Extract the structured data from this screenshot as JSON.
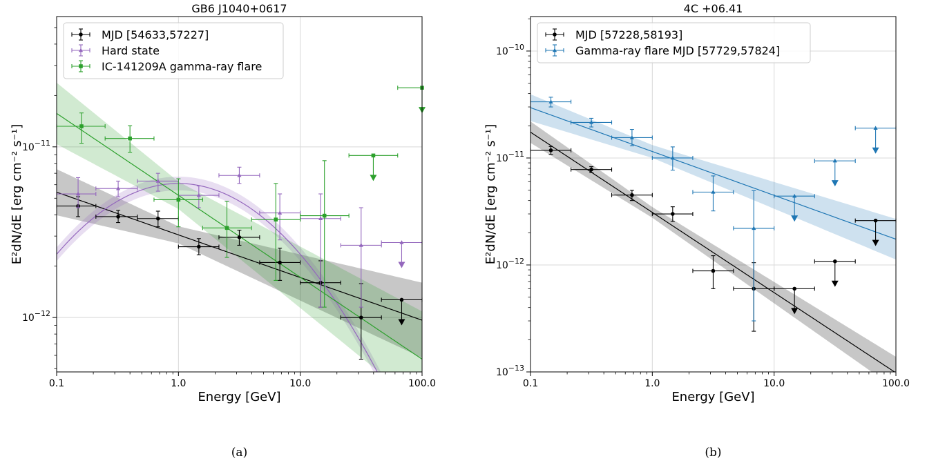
{
  "chart_data": [
    {
      "type": "scatter",
      "title": "GB6 J1040+0617",
      "xlabel": "Energy [GeV]",
      "ylabel": "E²dN/dE [erg cm⁻² s⁻¹]",
      "xscale": "log",
      "yscale": "log",
      "xlim": [
        0.1,
        100
      ],
      "ylim": [
        4.8e-13,
        5.8e-11
      ],
      "xticks": [
        0.1,
        1,
        10,
        100
      ],
      "xtick_labels": [
        "0.1",
        "1.0",
        "10.0",
        "100.0"
      ],
      "yticks": [
        1e-12,
        1e-11
      ],
      "ytick_labels": [
        {
          "base": "10",
          "exp": "−12"
        },
        {
          "base": "10",
          "exp": "−11"
        }
      ],
      "grid": true,
      "legend_position": "top-left",
      "caption": "(a)",
      "series": [
        {
          "name": "MJD [54633,57227]",
          "color": "#000000",
          "marker": "circle",
          "points": [
            {
              "x": 0.15,
              "xlo": 0.1,
              "xhi": 0.21,
              "y": 4.5e-12,
              "ylo": 3.9e-12,
              "yhi": 5.1e-12
            },
            {
              "x": 0.32,
              "xlo": 0.21,
              "xhi": 0.46,
              "y": 3.9e-12,
              "ylo": 3.6e-12,
              "yhi": 4.25e-12
            },
            {
              "x": 0.68,
              "xlo": 0.46,
              "xhi": 1.0,
              "y": 3.8e-12,
              "ylo": 3.4e-12,
              "yhi": 4.2e-12
            },
            {
              "x": 1.47,
              "xlo": 1.0,
              "xhi": 2.15,
              "y": 2.6e-12,
              "ylo": 2.33e-12,
              "yhi": 2.9e-12
            },
            {
              "x": 3.16,
              "xlo": 2.15,
              "xhi": 4.64,
              "y": 2.95e-12,
              "ylo": 2.65e-12,
              "yhi": 3.25e-12
            },
            {
              "x": 6.8,
              "xlo": 4.64,
              "xhi": 10.0,
              "y": 2.1e-12,
              "ylo": 1.65e-12,
              "yhi": 2.55e-12
            },
            {
              "x": 14.7,
              "xlo": 10.0,
              "xhi": 21.5,
              "y": 1.6e-12,
              "ylo": 1.15e-12,
              "yhi": 2.15e-12
            },
            {
              "x": 31.6,
              "xlo": 21.5,
              "xhi": 46.4,
              "y": 1e-12,
              "ylo": 5.7e-13,
              "yhi": 1.58e-12
            },
            {
              "x": 68.0,
              "xlo": 46.4,
              "xhi": 100,
              "y": 1.27e-12,
              "upper_limit": true
            }
          ],
          "model": {
            "kind": "powerlaw",
            "E0": 1,
            "norm": 3.05e-12,
            "index": 2.25,
            "band_width": [
              0.05,
              0.22
            ]
          }
        },
        {
          "name": "Hard state",
          "color": "#9467bd",
          "marker": "triangle",
          "points": [
            {
              "x": 0.15,
              "xlo": 0.1,
              "xhi": 0.21,
              "y": 5.3e-12,
              "ylo": 4.4e-12,
              "yhi": 6.6e-12
            },
            {
              "x": 0.32,
              "xlo": 0.21,
              "xhi": 0.46,
              "y": 5.7e-12,
              "ylo": 5.1e-12,
              "yhi": 6.3e-12
            },
            {
              "x": 0.68,
              "xlo": 0.46,
              "xhi": 1.0,
              "y": 6.3e-12,
              "ylo": 5.5e-12,
              "yhi": 7e-12
            },
            {
              "x": 1.47,
              "xlo": 1.0,
              "xhi": 2.15,
              "y": 5.2e-12,
              "ylo": 4.4e-12,
              "yhi": 5.9e-12
            },
            {
              "x": 3.16,
              "xlo": 2.15,
              "xhi": 4.64,
              "y": 6.8e-12,
              "ylo": 6.1e-12,
              "yhi": 7.6e-12
            },
            {
              "x": 6.8,
              "xlo": 4.64,
              "xhi": 10.0,
              "y": 4.1e-12,
              "ylo": 2.85e-12,
              "yhi": 5.3e-12
            },
            {
              "x": 14.7,
              "xlo": 10.0,
              "xhi": 21.5,
              "y": 3.8e-12,
              "ylo": 1.15e-12,
              "yhi": 5.3e-12
            },
            {
              "x": 31.6,
              "xlo": 21.5,
              "xhi": 46.4,
              "y": 2.65e-12,
              "ylo": 1.15e-12,
              "yhi": 4.4e-12
            },
            {
              "x": 68.0,
              "xlo": 46.4,
              "xhi": 100,
              "y": 2.75e-12,
              "upper_limit": true
            }
          ],
          "model": {
            "kind": "logparabola",
            "E0": 1,
            "norm": 6.1e-12,
            "alpha": 2.0,
            "beta": 0.18,
            "band_width": 0.04
          }
        },
        {
          "name": "IC-141209A gamma-ray flare",
          "color": "#2ca02c",
          "marker": "square",
          "points": [
            {
              "x": 0.16,
              "xlo": 0.1,
              "xhi": 0.25,
              "y": 1.32e-11,
              "ylo": 1.05e-11,
              "yhi": 1.58e-11
            },
            {
              "x": 0.4,
              "xlo": 0.25,
              "xhi": 0.63,
              "y": 1.12e-11,
              "ylo": 9.3e-12,
              "yhi": 1.33e-11
            },
            {
              "x": 1.0,
              "xlo": 0.63,
              "xhi": 1.58,
              "y": 4.9e-12,
              "ylo": 3.4e-12,
              "yhi": 6.5e-12
            },
            {
              "x": 2.5,
              "xlo": 1.58,
              "xhi": 3.98,
              "y": 3.35e-12,
              "ylo": 2.25e-12,
              "yhi": 4.8e-12
            },
            {
              "x": 6.3,
              "xlo": 3.98,
              "xhi": 10.0,
              "y": 3.75e-12,
              "ylo": 1.65e-12,
              "yhi": 6.1e-12
            },
            {
              "x": 15.8,
              "xlo": 10.0,
              "xhi": 25.1,
              "y": 3.95e-12,
              "ylo": 1.15e-12,
              "yhi": 8.3e-12
            },
            {
              "x": 39.8,
              "xlo": 25.1,
              "xhi": 63.1,
              "y": 8.9e-12,
              "upper_limit": true
            },
            {
              "x": 100,
              "xlo": 63.1,
              "xhi": 100,
              "y": 2.22e-11,
              "upper_limit": true
            }
          ],
          "model": {
            "kind": "powerlaw",
            "E0": 1,
            "norm": 5.2e-12,
            "index": 2.48,
            "band_width": [
              0.08,
              0.28
            ]
          }
        }
      ]
    },
    {
      "type": "scatter",
      "title": "4C +06.41",
      "xlabel": "Energy [GeV]",
      "ylabel": "E²dN/dE [erg cm⁻² s⁻¹]",
      "xscale": "log",
      "yscale": "log",
      "xlim": [
        0.1,
        100
      ],
      "ylim": [
        1e-13,
        2.1e-10
      ],
      "xticks": [
        0.1,
        1,
        10,
        100
      ],
      "xtick_labels": [
        "0.1",
        "1.0",
        "10.0",
        "100.0"
      ],
      "yticks": [
        1e-13,
        1e-12,
        1e-11,
        1e-10
      ],
      "ytick_labels": [
        {
          "base": "10",
          "exp": "−13"
        },
        {
          "base": "10",
          "exp": "−12"
        },
        {
          "base": "10",
          "exp": "−11"
        },
        {
          "base": "10",
          "exp": "−10"
        }
      ],
      "grid": true,
      "legend_position": "top-left",
      "caption": "(b)",
      "series": [
        {
          "name": "MJD [57228,58193]",
          "color": "#000000",
          "marker": "circle",
          "points": [
            {
              "x": 0.147,
              "xlo": 0.1,
              "xhi": 0.215,
              "y": 1.18e-11,
              "ylo": 1.08e-11,
              "yhi": 1.28e-11
            },
            {
              "x": 0.316,
              "xlo": 0.215,
              "xhi": 0.464,
              "y": 7.8e-12,
              "ylo": 7.3e-12,
              "yhi": 8.3e-12
            },
            {
              "x": 0.681,
              "xlo": 0.464,
              "xhi": 1.0,
              "y": 4.5e-12,
              "ylo": 4e-12,
              "yhi": 5e-12
            },
            {
              "x": 1.47,
              "xlo": 1.0,
              "xhi": 2.15,
              "y": 3e-12,
              "ylo": 2.55e-12,
              "yhi": 3.5e-12
            },
            {
              "x": 3.16,
              "xlo": 2.15,
              "xhi": 4.64,
              "y": 8.8e-13,
              "ylo": 6e-13,
              "yhi": 1.22e-12
            },
            {
              "x": 6.81,
              "xlo": 4.64,
              "xhi": 10.0,
              "y": 6e-13,
              "ylo": 2.4e-13,
              "yhi": 1.05e-12
            },
            {
              "x": 14.7,
              "xlo": 10.0,
              "xhi": 21.5,
              "y": 6e-13,
              "upper_limit": true
            },
            {
              "x": 31.6,
              "xlo": 21.5,
              "xhi": 46.4,
              "y": 1.08e-12,
              "upper_limit": true
            },
            {
              "x": 68.1,
              "xlo": 46.4,
              "xhi": 100,
              "y": 2.6e-12,
              "upper_limit": true
            }
          ],
          "model": {
            "kind": "powerlaw",
            "E0": 1,
            "norm": 3.1e-12,
            "index": 2.75,
            "band_width": [
              0.05,
              0.15
            ]
          }
        },
        {
          "name": "Gamma-ray flare MJD [57729,57824]",
          "color": "#1f77b4",
          "marker": "triangle",
          "points": [
            {
              "x": 0.147,
              "xlo": 0.1,
              "xhi": 0.215,
              "y": 3.35e-11,
              "ylo": 3e-11,
              "yhi": 3.7e-11
            },
            {
              "x": 0.316,
              "xlo": 0.215,
              "xhi": 0.464,
              "y": 2.15e-11,
              "ylo": 1.95e-11,
              "yhi": 2.35e-11
            },
            {
              "x": 0.681,
              "xlo": 0.464,
              "xhi": 1.0,
              "y": 1.55e-11,
              "ylo": 1.3e-11,
              "yhi": 1.85e-11
            },
            {
              "x": 1.47,
              "xlo": 1.0,
              "xhi": 2.15,
              "y": 1e-11,
              "ylo": 7.7e-12,
              "yhi": 1.27e-11
            },
            {
              "x": 3.16,
              "xlo": 2.15,
              "xhi": 4.64,
              "y": 4.8e-12,
              "ylo": 3.2e-12,
              "yhi": 6.8e-12
            },
            {
              "x": 6.81,
              "xlo": 4.64,
              "xhi": 10.0,
              "y": 2.2e-12,
              "ylo": 3e-13,
              "yhi": 4.95e-12
            },
            {
              "x": 14.7,
              "xlo": 10.0,
              "xhi": 21.5,
              "y": 4.4e-12,
              "upper_limit": true
            },
            {
              "x": 31.6,
              "xlo": 21.5,
              "xhi": 46.4,
              "y": 9.4e-12,
              "upper_limit": true
            },
            {
              "x": 68.1,
              "xlo": 46.4,
              "xhi": 100,
              "y": 1.9e-11,
              "upper_limit": true
            }
          ],
          "model": {
            "kind": "powerlaw",
            "E0": 1,
            "norm": 1.15e-11,
            "index": 2.41,
            "band_width": [
              0.06,
              0.19
            ]
          }
        }
      ]
    }
  ]
}
